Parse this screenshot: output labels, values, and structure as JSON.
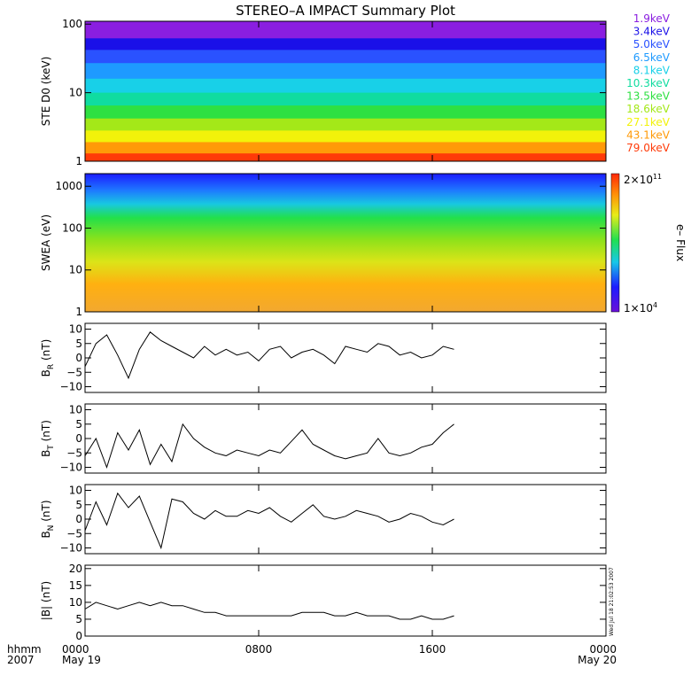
{
  "figure": {
    "title": "STEREO–A IMPACT Summary Plot",
    "timestamp": "Wed Jul 18 21:02:53 2007"
  },
  "time_axis": {
    "row_label": "hhmm",
    "year_label": "2007",
    "ticks": [
      {
        "hour": 0,
        "label": "0000",
        "date": "May 19"
      },
      {
        "hour": 8,
        "label": "0800",
        "date": ""
      },
      {
        "hour": 16,
        "label": "1600",
        "date": ""
      },
      {
        "hour": 24,
        "label": "0000",
        "date": "May 20"
      }
    ]
  },
  "chart_data": [
    {
      "id": "ste",
      "type": "area",
      "ylabel": "STE D0 (keV)",
      "yscale": "log",
      "ylim": [
        1,
        110
      ],
      "yticks": [
        {
          "v": 1,
          "label": "1"
        },
        {
          "v": 10,
          "label": "10"
        },
        {
          "v": 100,
          "label": "100"
        }
      ],
      "series": [
        {
          "name": "1.9keV",
          "color": "#8a1ee0",
          "level": 110
        },
        {
          "name": "3.4keV",
          "color": "#1a10e8",
          "level": 62
        },
        {
          "name": "5.0keV",
          "color": "#2a52ff",
          "level": 42
        },
        {
          "name": "6.5keV",
          "color": "#1e9aff",
          "level": 27
        },
        {
          "name": "8.1keV",
          "color": "#18d0e8",
          "level": 16
        },
        {
          "name": "10.3keV",
          "color": "#10dca0",
          "level": 10
        },
        {
          "name": "13.5keV",
          "color": "#2ee042",
          "level": 6.5
        },
        {
          "name": "18.6keV",
          "color": "#a4e818",
          "level": 4.2
        },
        {
          "name": "27.1keV",
          "color": "#f2f20a",
          "level": 2.8
        },
        {
          "name": "43.1keV",
          "color": "#ff9a08",
          "level": 1.9
        },
        {
          "name": "79.0keV",
          "color": "#ff3a08",
          "level": 1.3
        }
      ]
    },
    {
      "id": "swea",
      "type": "heatmap",
      "ylabel": "SWEA (eV)",
      "yscale": "log",
      "ylim": [
        1,
        2000
      ],
      "yticks": [
        {
          "v": 1,
          "label": "1"
        },
        {
          "v": 10,
          "label": "10"
        },
        {
          "v": 100,
          "label": "100"
        },
        {
          "v": 1000,
          "label": "1000"
        }
      ],
      "colorbar": {
        "label": "e– Flux",
        "max_label": "2×10",
        "max_exp": "11",
        "min_label": "1×10",
        "min_exp": "4"
      }
    },
    {
      "id": "br",
      "type": "line",
      "ylabel": "B",
      "ylabel_sub": "R",
      "ylabel_unit": " (nT)",
      "ylim": [
        -12,
        12
      ],
      "yticks": [
        {
          "v": -10,
          "label": "−10"
        },
        {
          "v": -5,
          "label": "−5"
        },
        {
          "v": 0,
          "label": "0"
        },
        {
          "v": 5,
          "label": "5"
        },
        {
          "v": 10,
          "label": "10"
        }
      ],
      "x": [
        0,
        0.5,
        1,
        1.5,
        2,
        2.5,
        3,
        3.5,
        4,
        4.5,
        5,
        5.5,
        6,
        6.5,
        7,
        7.5,
        8,
        8.5,
        9,
        9.5,
        10,
        10.5,
        11,
        11.5,
        12,
        12.5,
        13,
        13.5,
        14,
        14.5,
        15,
        15.5,
        16,
        16.5,
        17
      ],
      "values": [
        -3,
        5,
        8,
        1,
        -7,
        3,
        9,
        6,
        4,
        2,
        0,
        4,
        1,
        3,
        1,
        2,
        -1,
        3,
        4,
        0,
        2,
        3,
        1,
        -2,
        4,
        3,
        2,
        5,
        4,
        1,
        2,
        0,
        1,
        4,
        3
      ]
    },
    {
      "id": "bt",
      "type": "line",
      "ylabel": "B",
      "ylabel_sub": "T",
      "ylabel_unit": " (nT)",
      "ylim": [
        -12,
        12
      ],
      "yticks": [
        {
          "v": -10,
          "label": "−10"
        },
        {
          "v": -5,
          "label": "−5"
        },
        {
          "v": 0,
          "label": "0"
        },
        {
          "v": 5,
          "label": "5"
        },
        {
          "v": 10,
          "label": "10"
        }
      ],
      "x": [
        0,
        0.5,
        1,
        1.5,
        2,
        2.5,
        3,
        3.5,
        4,
        4.5,
        5,
        5.5,
        6,
        6.5,
        7,
        7.5,
        8,
        8.5,
        9,
        9.5,
        10,
        10.5,
        11,
        11.5,
        12,
        12.5,
        13,
        13.5,
        14,
        14.5,
        15,
        15.5,
        16,
        16.5,
        17
      ],
      "values": [
        -6,
        0,
        -10,
        2,
        -4,
        3,
        -9,
        -2,
        -8,
        5,
        0,
        -3,
        -5,
        -6,
        -4,
        -5,
        -6,
        -4,
        -5,
        -1,
        3,
        -2,
        -4,
        -6,
        -7,
        -6,
        -5,
        0,
        -5,
        -6,
        -5,
        -3,
        -2,
        2,
        5
      ]
    },
    {
      "id": "bn",
      "type": "line",
      "ylabel": "B",
      "ylabel_sub": "N",
      "ylabel_unit": " (nT)",
      "ylim": [
        -12,
        12
      ],
      "yticks": [
        {
          "v": -10,
          "label": "−10"
        },
        {
          "v": -5,
          "label": "−5"
        },
        {
          "v": 0,
          "label": "0"
        },
        {
          "v": 5,
          "label": "5"
        },
        {
          "v": 10,
          "label": "10"
        }
      ],
      "x": [
        0,
        0.5,
        1,
        1.5,
        2,
        2.5,
        3,
        3.5,
        4,
        4.5,
        5,
        5.5,
        6,
        6.5,
        7,
        7.5,
        8,
        8.5,
        9,
        9.5,
        10,
        10.5,
        11,
        11.5,
        12,
        12.5,
        13,
        13.5,
        14,
        14.5,
        15,
        15.5,
        16,
        16.5,
        17
      ],
      "values": [
        -4,
        6,
        -2,
        9,
        4,
        8,
        -1,
        -10,
        7,
        6,
        2,
        0,
        3,
        1,
        1,
        3,
        2,
        4,
        1,
        -1,
        2,
        5,
        1,
        0,
        1,
        3,
        2,
        1,
        -1,
        0,
        2,
        1,
        -1,
        -2,
        0
      ]
    },
    {
      "id": "bmag",
      "type": "line",
      "ylabel": "|B| (nT)",
      "ylim": [
        0,
        21
      ],
      "yticks": [
        {
          "v": 0,
          "label": "0"
        },
        {
          "v": 5,
          "label": "5"
        },
        {
          "v": 10,
          "label": "10"
        },
        {
          "v": 15,
          "label": "15"
        },
        {
          "v": 20,
          "label": "20"
        }
      ],
      "x": [
        0,
        0.5,
        1,
        1.5,
        2,
        2.5,
        3,
        3.5,
        4,
        4.5,
        5,
        5.5,
        6,
        6.5,
        7,
        7.5,
        8,
        8.5,
        9,
        9.5,
        10,
        10.5,
        11,
        11.5,
        12,
        12.5,
        13,
        13.5,
        14,
        14.5,
        15,
        15.5,
        16,
        16.5,
        17
      ],
      "values": [
        8,
        10,
        9,
        8,
        9,
        10,
        9,
        10,
        9,
        9,
        8,
        7,
        7,
        6,
        6,
        6,
        6,
        6,
        6,
        6,
        7,
        7,
        7,
        6,
        6,
        7,
        6,
        6,
        6,
        5,
        5,
        6,
        5,
        5,
        6
      ]
    }
  ]
}
